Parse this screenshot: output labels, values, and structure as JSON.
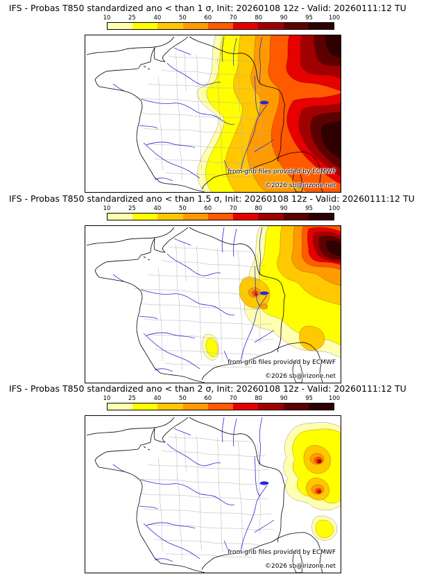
{
  "colorbar": {
    "tick_labels": [
      "10",
      "25",
      "40",
      "50",
      "60",
      "70",
      "80",
      "90",
      "95",
      "100"
    ],
    "colors": [
      "#ffffb0",
      "#ffff00",
      "#ffc800",
      "#ff9b00",
      "#ff5a00",
      "#e60000",
      "#a00000",
      "#5c0000",
      "#2e0000"
    ]
  },
  "map_style": {
    "river_color": "#2a2ad0",
    "department_color": "#b0b0b0",
    "coast_color": "#000000",
    "contour_color": "rgba(60,0,0,0.55)"
  },
  "panels": [
    {
      "title": "IFS - Probas T850  standardized ano < than 1 σ, Init: 20260108 12z - Valid: 20260111:12 TU",
      "credit_line1": "from grib files provided by ECMWF",
      "credit_line2": "©2026 sb@irizone.net"
    },
    {
      "title": "IFS - Probas T850  standardized ano < than 1.5 σ, Init: 20260108 12z - Valid: 20260111:12 TU",
      "credit_line1": "from grib files provided by ECMWF",
      "credit_line2": "©2026 sb@irizone.net"
    },
    {
      "title": "IFS - Probas T850  standardized ano < than 2 σ, Init: 20260108 12z - Valid: 20260111:12 TU",
      "credit_line1": "from grib files provided by ECMWF",
      "credit_line2": "©2026 sb@irizone.net"
    }
  ]
}
